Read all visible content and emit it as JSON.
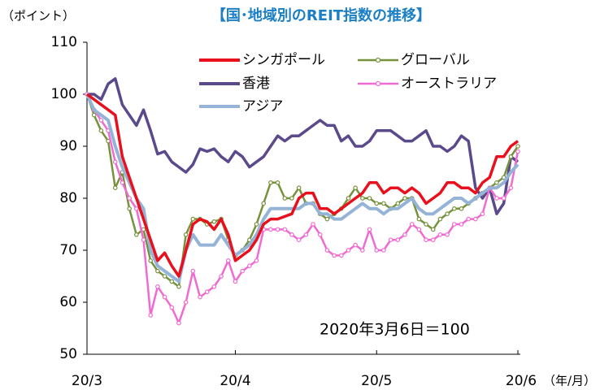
{
  "chart_data": {
    "type": "line",
    "title": "【国･地域別のREIT指数の推移】",
    "y_label": "（ポイント）",
    "x_label": "（年/月）",
    "annotation": "2020年3月6日＝100",
    "categories": [
      "20/3",
      null,
      null,
      null,
      null,
      null,
      null,
      null,
      null,
      null,
      null,
      null,
      null,
      null,
      null,
      null,
      null,
      null,
      null,
      null,
      null,
      "20/4",
      null,
      null,
      null,
      null,
      null,
      null,
      null,
      null,
      null,
      null,
      null,
      null,
      null,
      null,
      null,
      null,
      null,
      null,
      null,
      "20/5",
      null,
      null,
      null,
      null,
      null,
      null,
      null,
      null,
      null,
      null,
      null,
      null,
      null,
      null,
      null,
      null,
      null,
      null,
      null,
      "20/6"
    ],
    "ylim": [
      50,
      110
    ],
    "yticks": [
      50,
      60,
      70,
      80,
      90,
      100,
      110
    ],
    "series": [
      {
        "name": "香港",
        "color": "#5b4a8b",
        "marker": false,
        "values": [
          100,
          100,
          99,
          102,
          103,
          98,
          96,
          94,
          97,
          93,
          88.5,
          89,
          87,
          86,
          85,
          86.5,
          89.5,
          89,
          89.5,
          88,
          87,
          89,
          88,
          86,
          87,
          88,
          90,
          92,
          91,
          92,
          92,
          93,
          94,
          95,
          94,
          94,
          91,
          92,
          90,
          90,
          91,
          93,
          93,
          93,
          92,
          91,
          91,
          92,
          93,
          90,
          90,
          89,
          90,
          92,
          91,
          82,
          80,
          82,
          77,
          79,
          88,
          87
        ]
      },
      {
        "name": "グローバル",
        "color": "#76923c",
        "marker": true,
        "values": [
          100,
          96,
          93,
          91,
          82,
          85,
          78,
          73,
          74,
          68,
          66,
          65,
          64,
          63,
          73,
          76,
          76,
          75,
          75.5,
          76,
          72,
          69,
          70,
          72,
          75,
          79,
          83,
          83,
          80,
          80,
          82,
          79,
          79,
          77,
          76,
          77,
          78,
          80,
          82,
          80,
          80,
          79,
          79,
          78,
          79,
          80,
          80,
          76,
          75,
          74,
          76,
          77,
          78,
          78,
          79,
          80,
          81,
          82,
          83,
          84,
          88,
          90
        ]
      },
      {
        "name": "オーストラリア",
        "color": "#f06ad2",
        "marker": true,
        "values": [
          100,
          97,
          95,
          93,
          87,
          83,
          80,
          78,
          72,
          57.5,
          63,
          61,
          59,
          56,
          60,
          66,
          61,
          62,
          63,
          65,
          68,
          64,
          66,
          67,
          68,
          74,
          74,
          74,
          74,
          73,
          72,
          73,
          75,
          73,
          70,
          69,
          69,
          70,
          71,
          70,
          74,
          70,
          70,
          72,
          72,
          73,
          75,
          74,
          72,
          72,
          73,
          73,
          75,
          75,
          76,
          76,
          77,
          82,
          80,
          80,
          82,
          89
        ]
      },
      {
        "name": "アジア",
        "color": "#95b3d7",
        "marker": false,
        "values": [
          100,
          97,
          96,
          95,
          90,
          86,
          83,
          80,
          78,
          70,
          67,
          66,
          65,
          64,
          70,
          73,
          71,
          71,
          71,
          73,
          71,
          69,
          70,
          71,
          73,
          76,
          78,
          78,
          78,
          78,
          78,
          79,
          79,
          77,
          77,
          76,
          76,
          77,
          78,
          79,
          78,
          78,
          77,
          78,
          78,
          79,
          80,
          78,
          77,
          77,
          78,
          79,
          80,
          80,
          79,
          80,
          81,
          82,
          82,
          83,
          85,
          86.5
        ]
      },
      {
        "name": "シンガポール",
        "color": "#e8101c",
        "marker": false,
        "values": [
          100,
          99,
          98,
          97,
          96,
          88,
          84,
          80,
          76,
          72,
          68,
          69.5,
          67,
          65,
          70,
          75,
          76,
          75.5,
          74,
          76,
          73,
          68,
          69,
          70,
          72,
          75,
          76,
          76,
          76.5,
          77,
          80,
          81,
          81,
          78,
          78,
          77,
          78,
          79,
          80,
          81,
          83,
          83,
          81,
          82,
          82,
          81,
          82,
          81,
          79,
          80,
          81,
          83,
          83,
          82,
          82,
          81,
          83,
          84,
          88,
          88,
          90,
          91
        ]
      }
    ]
  }
}
